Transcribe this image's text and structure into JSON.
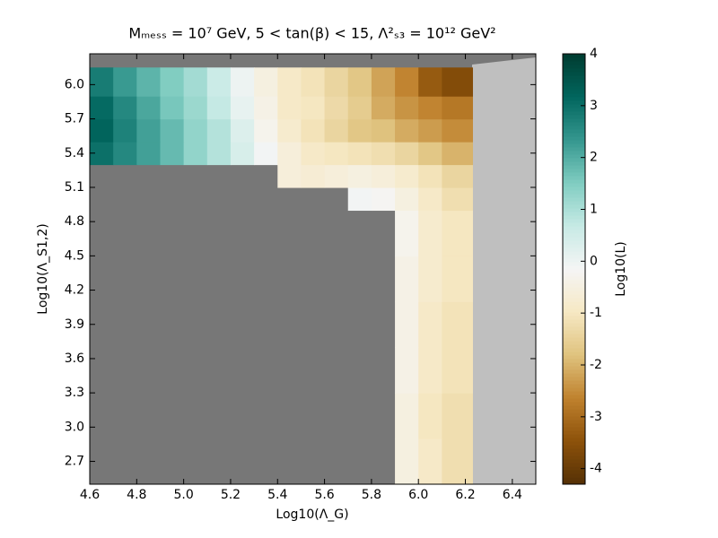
{
  "chart_data": {
    "type": "heatmap",
    "title": "Mₘₑₛₛ = 10⁷  GeV, 5 < tan(β) < 15, Λ²ₛ₃ = 10¹²  GeV²",
    "x_label": "Log10(Λ_G)",
    "y_label": "Log10(Λ_S1,2)",
    "colorbar_label": "Log10(L)",
    "colormap": "BrBG",
    "xbins": [
      4.6,
      4.7,
      4.8,
      4.9,
      5.0,
      5.1,
      5.2,
      5.3,
      5.4,
      5.5,
      5.6,
      5.7,
      5.8,
      5.9,
      6.0,
      6.1,
      6.23
    ],
    "ybins": [
      2.5,
      2.9,
      3.3,
      3.7,
      4.1,
      4.5,
      4.9,
      5.1,
      5.3,
      5.5,
      5.7,
      5.9,
      6.15
    ],
    "z": [
      [
        null,
        null,
        null,
        null,
        null,
        null,
        null,
        null,
        null,
        null,
        null,
        null,
        null,
        -0.5,
        -0.9,
        -1.2
      ],
      [
        null,
        null,
        null,
        null,
        null,
        null,
        null,
        null,
        null,
        null,
        null,
        null,
        null,
        -0.5,
        -1.0,
        -1.2
      ],
      [
        null,
        null,
        null,
        null,
        null,
        null,
        null,
        null,
        null,
        null,
        null,
        null,
        null,
        -0.4,
        -0.9,
        -1.1
      ],
      [
        null,
        null,
        null,
        null,
        null,
        null,
        null,
        null,
        null,
        null,
        null,
        null,
        null,
        -0.4,
        -0.9,
        -1.1
      ],
      [
        null,
        null,
        null,
        null,
        null,
        null,
        null,
        null,
        null,
        null,
        null,
        null,
        null,
        -0.4,
        -0.8,
        -1.0
      ],
      [
        null,
        null,
        null,
        null,
        null,
        null,
        null,
        null,
        null,
        null,
        null,
        null,
        null,
        -0.3,
        -0.8,
        -1.0
      ],
      [
        null,
        null,
        null,
        null,
        null,
        null,
        null,
        null,
        null,
        null,
        null,
        -0.1,
        -0.2,
        -0.5,
        -0.9,
        -1.2
      ],
      [
        null,
        null,
        null,
        null,
        null,
        null,
        null,
        null,
        -0.6,
        -0.7,
        -0.6,
        -0.5,
        -0.6,
        -0.8,
        -1.1,
        -1.4
      ],
      [
        3.0,
        2.6,
        2.2,
        1.8,
        1.3,
        0.9,
        0.4,
        -0.1,
        -0.6,
        -0.9,
        -1.0,
        -1.1,
        -1.2,
        -1.4,
        -1.7,
        -2.0
      ],
      [
        3.2,
        2.7,
        2.2,
        1.8,
        1.3,
        0.9,
        0.3,
        -0.3,
        -0.8,
        -1.1,
        -1.4,
        -1.7,
        -1.8,
        -2.1,
        -2.3,
        -2.5
      ],
      [
        3.1,
        2.6,
        2.1,
        1.6,
        1.2,
        0.7,
        0.1,
        -0.4,
        -0.9,
        -1.0,
        -1.3,
        -1.6,
        -2.1,
        -2.4,
        -2.6,
        -2.8
      ],
      [
        2.8,
        2.3,
        1.9,
        1.5,
        1.1,
        0.6,
        0.0,
        -0.5,
        -0.9,
        -1.1,
        -1.4,
        -1.7,
        -2.2,
        -2.6,
        -3.3,
        -3.6
      ]
    ],
    "xlim": [
      4.6,
      6.5
    ],
    "ylim": [
      2.5,
      6.27
    ],
    "clim": [
      -4.3,
      4
    ],
    "xticks": [
      4.6,
      4.8,
      {
        "value": 5,
        "label": "5.0"
      },
      5.2,
      5.4,
      5.6,
      5.8,
      {
        "value": 6,
        "label": "6.0"
      },
      6.2,
      6.4
    ],
    "yticks": [
      2.7,
      {
        "value": 3,
        "label": "3.0"
      },
      3.3,
      3.6,
      3.9,
      4.2,
      4.5,
      4.8,
      5.1,
      5.4,
      5.7,
      {
        "value": 6,
        "label": "6.0"
      }
    ],
    "cticks": [
      -4,
      -3,
      -2,
      -1,
      0,
      1,
      2,
      3,
      4
    ]
  }
}
